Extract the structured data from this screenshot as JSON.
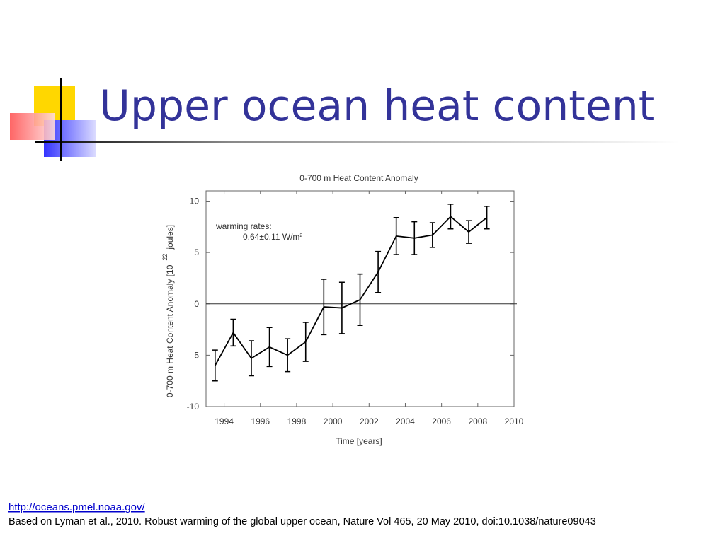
{
  "slide": {
    "title": "Upper ocean heat content",
    "link": "http://oceans.pmel.noaa.gov/",
    "citation": "Based on Lyman et al., 2010. Robust warming of the global upper ocean, Nature Vol 465, 20 May 2010, doi:10.1038/nature09043"
  },
  "chart_data": {
    "type": "line",
    "title": "0-700 m Heat Content Anomaly",
    "xlabel": "Time [years]",
    "ylabel": "0-700 m Heat Content Anomaly [10",
    "ylabel_exponent": "22",
    "ylabel_unit": "joules]",
    "annotation": "warming rates:",
    "annotation_rate": "0.64±0.11 W/m",
    "annotation_rate_exponent": "2",
    "x": [
      1993.5,
      1994.5,
      1995.5,
      1996.5,
      1997.5,
      1998.5,
      1999.5,
      2000.5,
      2001.5,
      2002.5,
      2003.5,
      2004.5,
      2005.5,
      2006.5,
      2007.5,
      2008.5
    ],
    "series": [
      {
        "name": "Heat content anomaly",
        "color": "#000000",
        "values": [
          -6.0,
          -2.8,
          -5.3,
          -4.2,
          -5.0,
          -3.7,
          -0.3,
          -0.4,
          0.4,
          3.1,
          6.6,
          6.4,
          6.7,
          8.5,
          7.0,
          8.4
        ],
        "errors": [
          1.5,
          1.3,
          1.7,
          1.9,
          1.6,
          1.9,
          2.7,
          2.5,
          2.5,
          2.0,
          1.8,
          1.6,
          1.2,
          1.2,
          1.1,
          1.1
        ]
      }
    ],
    "xlim": [
      1993,
      2010
    ],
    "xticks": [
      1994,
      1996,
      1998,
      2000,
      2002,
      2004,
      2006,
      2008,
      2010
    ],
    "ylim": [
      -10,
      11
    ],
    "yticks": [
      -10,
      -5,
      0,
      5,
      10
    ],
    "grid": false,
    "zero_line": true
  }
}
